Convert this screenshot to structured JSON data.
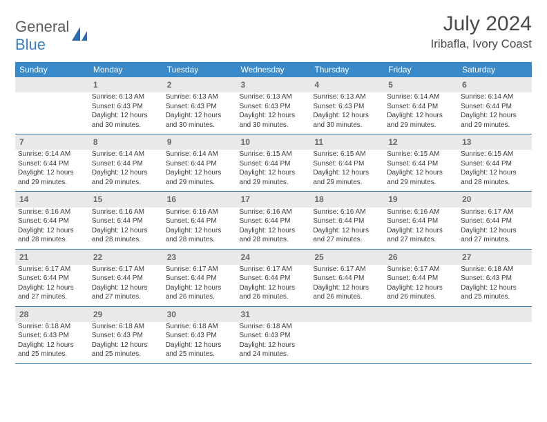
{
  "branding": {
    "word1": "General",
    "word2": "Blue",
    "word1_color": "#5a5a5a",
    "word2_color": "#3a7fc4",
    "sail_color": "#2b6bb0"
  },
  "header": {
    "title": "July 2024",
    "location": "Iribafla, Ivory Coast",
    "title_fontsize": 30,
    "title_color": "#4a4a4a",
    "location_fontsize": 17
  },
  "calendar_style": {
    "header_bg": "#3a8ac9",
    "header_text_color": "#ffffff",
    "header_fontsize": 12,
    "daynum_bg": "#e8e9ea",
    "daynum_color": "#6a6a6a",
    "daynum_fontsize": 12,
    "cell_fontsize": 10,
    "cell_text_color": "#3a3a3a",
    "row_divider_color": "#3a7fb0"
  },
  "weekday_labels": [
    "Sunday",
    "Monday",
    "Tuesday",
    "Wednesday",
    "Thursday",
    "Friday",
    "Saturday"
  ],
  "weeks": [
    {
      "days": [
        null,
        {
          "n": "1",
          "sunrise": "Sunrise: 6:13 AM",
          "sunset": "Sunset: 6:43 PM",
          "day1": "Daylight: 12 hours",
          "day2": "and 30 minutes."
        },
        {
          "n": "2",
          "sunrise": "Sunrise: 6:13 AM",
          "sunset": "Sunset: 6:43 PM",
          "day1": "Daylight: 12 hours",
          "day2": "and 30 minutes."
        },
        {
          "n": "3",
          "sunrise": "Sunrise: 6:13 AM",
          "sunset": "Sunset: 6:43 PM",
          "day1": "Daylight: 12 hours",
          "day2": "and 30 minutes."
        },
        {
          "n": "4",
          "sunrise": "Sunrise: 6:13 AM",
          "sunset": "Sunset: 6:43 PM",
          "day1": "Daylight: 12 hours",
          "day2": "and 30 minutes."
        },
        {
          "n": "5",
          "sunrise": "Sunrise: 6:14 AM",
          "sunset": "Sunset: 6:44 PM",
          "day1": "Daylight: 12 hours",
          "day2": "and 29 minutes."
        },
        {
          "n": "6",
          "sunrise": "Sunrise: 6:14 AM",
          "sunset": "Sunset: 6:44 PM",
          "day1": "Daylight: 12 hours",
          "day2": "and 29 minutes."
        }
      ]
    },
    {
      "days": [
        {
          "n": "7",
          "sunrise": "Sunrise: 6:14 AM",
          "sunset": "Sunset: 6:44 PM",
          "day1": "Daylight: 12 hours",
          "day2": "and 29 minutes."
        },
        {
          "n": "8",
          "sunrise": "Sunrise: 6:14 AM",
          "sunset": "Sunset: 6:44 PM",
          "day1": "Daylight: 12 hours",
          "day2": "and 29 minutes."
        },
        {
          "n": "9",
          "sunrise": "Sunrise: 6:14 AM",
          "sunset": "Sunset: 6:44 PM",
          "day1": "Daylight: 12 hours",
          "day2": "and 29 minutes."
        },
        {
          "n": "10",
          "sunrise": "Sunrise: 6:15 AM",
          "sunset": "Sunset: 6:44 PM",
          "day1": "Daylight: 12 hours",
          "day2": "and 29 minutes."
        },
        {
          "n": "11",
          "sunrise": "Sunrise: 6:15 AM",
          "sunset": "Sunset: 6:44 PM",
          "day1": "Daylight: 12 hours",
          "day2": "and 29 minutes."
        },
        {
          "n": "12",
          "sunrise": "Sunrise: 6:15 AM",
          "sunset": "Sunset: 6:44 PM",
          "day1": "Daylight: 12 hours",
          "day2": "and 29 minutes."
        },
        {
          "n": "13",
          "sunrise": "Sunrise: 6:15 AM",
          "sunset": "Sunset: 6:44 PM",
          "day1": "Daylight: 12 hours",
          "day2": "and 28 minutes."
        }
      ]
    },
    {
      "days": [
        {
          "n": "14",
          "sunrise": "Sunrise: 6:16 AM",
          "sunset": "Sunset: 6:44 PM",
          "day1": "Daylight: 12 hours",
          "day2": "and 28 minutes."
        },
        {
          "n": "15",
          "sunrise": "Sunrise: 6:16 AM",
          "sunset": "Sunset: 6:44 PM",
          "day1": "Daylight: 12 hours",
          "day2": "and 28 minutes."
        },
        {
          "n": "16",
          "sunrise": "Sunrise: 6:16 AM",
          "sunset": "Sunset: 6:44 PM",
          "day1": "Daylight: 12 hours",
          "day2": "and 28 minutes."
        },
        {
          "n": "17",
          "sunrise": "Sunrise: 6:16 AM",
          "sunset": "Sunset: 6:44 PM",
          "day1": "Daylight: 12 hours",
          "day2": "and 28 minutes."
        },
        {
          "n": "18",
          "sunrise": "Sunrise: 6:16 AM",
          "sunset": "Sunset: 6:44 PM",
          "day1": "Daylight: 12 hours",
          "day2": "and 27 minutes."
        },
        {
          "n": "19",
          "sunrise": "Sunrise: 6:16 AM",
          "sunset": "Sunset: 6:44 PM",
          "day1": "Daylight: 12 hours",
          "day2": "and 27 minutes."
        },
        {
          "n": "20",
          "sunrise": "Sunrise: 6:17 AM",
          "sunset": "Sunset: 6:44 PM",
          "day1": "Daylight: 12 hours",
          "day2": "and 27 minutes."
        }
      ]
    },
    {
      "days": [
        {
          "n": "21",
          "sunrise": "Sunrise: 6:17 AM",
          "sunset": "Sunset: 6:44 PM",
          "day1": "Daylight: 12 hours",
          "day2": "and 27 minutes."
        },
        {
          "n": "22",
          "sunrise": "Sunrise: 6:17 AM",
          "sunset": "Sunset: 6:44 PM",
          "day1": "Daylight: 12 hours",
          "day2": "and 27 minutes."
        },
        {
          "n": "23",
          "sunrise": "Sunrise: 6:17 AM",
          "sunset": "Sunset: 6:44 PM",
          "day1": "Daylight: 12 hours",
          "day2": "and 26 minutes."
        },
        {
          "n": "24",
          "sunrise": "Sunrise: 6:17 AM",
          "sunset": "Sunset: 6:44 PM",
          "day1": "Daylight: 12 hours",
          "day2": "and 26 minutes."
        },
        {
          "n": "25",
          "sunrise": "Sunrise: 6:17 AM",
          "sunset": "Sunset: 6:44 PM",
          "day1": "Daylight: 12 hours",
          "day2": "and 26 minutes."
        },
        {
          "n": "26",
          "sunrise": "Sunrise: 6:17 AM",
          "sunset": "Sunset: 6:44 PM",
          "day1": "Daylight: 12 hours",
          "day2": "and 26 minutes."
        },
        {
          "n": "27",
          "sunrise": "Sunrise: 6:18 AM",
          "sunset": "Sunset: 6:43 PM",
          "day1": "Daylight: 12 hours",
          "day2": "and 25 minutes."
        }
      ]
    },
    {
      "days": [
        {
          "n": "28",
          "sunrise": "Sunrise: 6:18 AM",
          "sunset": "Sunset: 6:43 PM",
          "day1": "Daylight: 12 hours",
          "day2": "and 25 minutes."
        },
        {
          "n": "29",
          "sunrise": "Sunrise: 6:18 AM",
          "sunset": "Sunset: 6:43 PM",
          "day1": "Daylight: 12 hours",
          "day2": "and 25 minutes."
        },
        {
          "n": "30",
          "sunrise": "Sunrise: 6:18 AM",
          "sunset": "Sunset: 6:43 PM",
          "day1": "Daylight: 12 hours",
          "day2": "and 25 minutes."
        },
        {
          "n": "31",
          "sunrise": "Sunrise: 6:18 AM",
          "sunset": "Sunset: 6:43 PM",
          "day1": "Daylight: 12 hours",
          "day2": "and 24 minutes."
        },
        null,
        null,
        null
      ]
    }
  ]
}
